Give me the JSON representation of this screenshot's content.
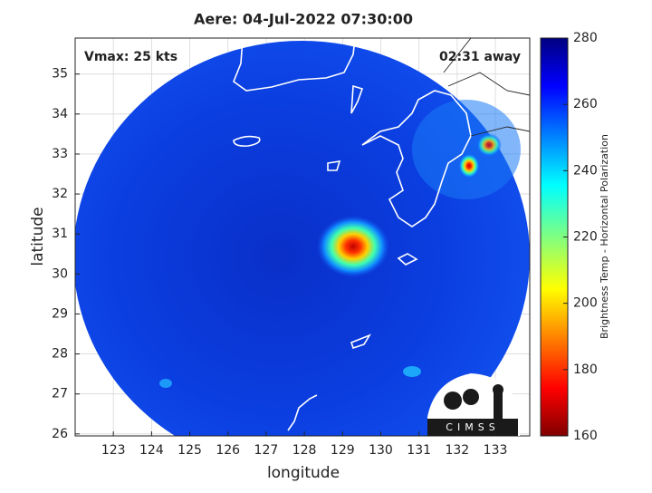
{
  "chart_data": {
    "type": "map",
    "title": "Aere: 04-Jul-2022 07:30:00",
    "xlabel": "longitude",
    "ylabel": "latitude",
    "xlim": [
      122,
      133.9
    ],
    "ylim": [
      25.95,
      35.9
    ],
    "xticks": [
      123,
      124,
      125,
      126,
      127,
      128,
      129,
      130,
      131,
      132,
      133
    ],
    "yticks": [
      26,
      27,
      28,
      29,
      30,
      31,
      32,
      33,
      34,
      35
    ],
    "grid": true,
    "annotations": [
      "Vmax: 25 kts",
      "02:31 away"
    ],
    "logo": "CIMSS",
    "colorbar": {
      "label": "Brightness Temp - Horizontal Polarization",
      "lim": [
        160,
        280
      ],
      "ticks": [
        160,
        180,
        200,
        220,
        240,
        260,
        280
      ]
    }
  }
}
